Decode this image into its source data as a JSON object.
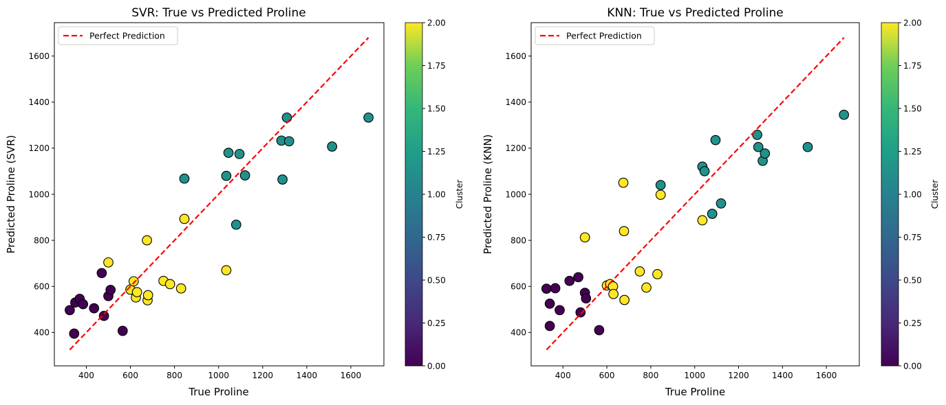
{
  "chart_data": [
    {
      "type": "scatter",
      "title": "SVR: True vs Predicted Proline",
      "xlabel": "True Proline",
      "ylabel": "Predicted Proline (SVR)",
      "xlim": [
        255,
        1750
      ],
      "ylim": [
        255,
        1745
      ],
      "xticks": [
        400,
        600,
        800,
        1000,
        1200,
        1400,
        1600
      ],
      "yticks": [
        400,
        600,
        800,
        1000,
        1200,
        1400,
        1600
      ],
      "grid": false,
      "legend": {
        "position": "upper left",
        "entries": [
          "Perfect Prediction"
        ]
      },
      "reference_line": {
        "name": "Perfect Prediction",
        "style": "dashed",
        "color": "#ff0000",
        "from": [
          325,
          325
        ],
        "to": [
          1680,
          1680
        ]
      },
      "colorbar": {
        "label": "Cluster",
        "range": [
          0.0,
          2.0
        ],
        "ticks": [
          "0.00",
          "0.25",
          "0.50",
          "0.75",
          "1.00",
          "1.25",
          "1.50",
          "1.75",
          "2.00"
        ]
      },
      "points": [
        {
          "x": 325,
          "y": 497,
          "cluster": 0
        },
        {
          "x": 345,
          "y": 395,
          "cluster": 0
        },
        {
          "x": 350,
          "y": 530,
          "cluster": 0
        },
        {
          "x": 370,
          "y": 546,
          "cluster": 0
        },
        {
          "x": 385,
          "y": 523,
          "cluster": 0
        },
        {
          "x": 435,
          "y": 505,
          "cluster": 0
        },
        {
          "x": 470,
          "y": 658,
          "cluster": 0
        },
        {
          "x": 480,
          "y": 472,
          "cluster": 0
        },
        {
          "x": 500,
          "y": 558,
          "cluster": 0
        },
        {
          "x": 510,
          "y": 585,
          "cluster": 0
        },
        {
          "x": 565,
          "y": 407,
          "cluster": 0
        },
        {
          "x": 500,
          "y": 704,
          "cluster": 2
        },
        {
          "x": 600,
          "y": 586,
          "cluster": 2
        },
        {
          "x": 615,
          "y": 622,
          "cluster": 2
        },
        {
          "x": 625,
          "y": 552,
          "cluster": 2
        },
        {
          "x": 630,
          "y": 575,
          "cluster": 2
        },
        {
          "x": 675,
          "y": 800,
          "cluster": 2
        },
        {
          "x": 678,
          "y": 540,
          "cluster": 2
        },
        {
          "x": 680,
          "y": 562,
          "cluster": 2
        },
        {
          "x": 750,
          "y": 624,
          "cluster": 2
        },
        {
          "x": 780,
          "y": 610,
          "cluster": 2
        },
        {
          "x": 830,
          "y": 591,
          "cluster": 2
        },
        {
          "x": 845,
          "y": 893,
          "cluster": 2
        },
        {
          "x": 1035,
          "y": 670,
          "cluster": 2
        },
        {
          "x": 845,
          "y": 1068,
          "cluster": 1
        },
        {
          "x": 1035,
          "y": 1080,
          "cluster": 1
        },
        {
          "x": 1045,
          "y": 1180,
          "cluster": 1
        },
        {
          "x": 1080,
          "y": 868,
          "cluster": 1
        },
        {
          "x": 1095,
          "y": 1175,
          "cluster": 1
        },
        {
          "x": 1120,
          "y": 1082,
          "cluster": 1
        },
        {
          "x": 1285,
          "y": 1233,
          "cluster": 1
        },
        {
          "x": 1290,
          "y": 1064,
          "cluster": 1
        },
        {
          "x": 1310,
          "y": 1333,
          "cluster": 1
        },
        {
          "x": 1320,
          "y": 1230,
          "cluster": 1
        },
        {
          "x": 1515,
          "y": 1207,
          "cluster": 1
        },
        {
          "x": 1680,
          "y": 1333,
          "cluster": 1
        }
      ]
    },
    {
      "type": "scatter",
      "title": "KNN: True vs Predicted Proline",
      "xlabel": "True Proline",
      "ylabel": "Predicted Proline (KNN)",
      "xlim": [
        255,
        1750
      ],
      "ylim": [
        255,
        1745
      ],
      "xticks": [
        400,
        600,
        800,
        1000,
        1200,
        1400,
        1600
      ],
      "yticks": [
        400,
        600,
        800,
        1000,
        1200,
        1400,
        1600
      ],
      "grid": false,
      "legend": {
        "position": "upper left",
        "entries": [
          "Perfect Prediction"
        ]
      },
      "reference_line": {
        "name": "Perfect Prediction",
        "style": "dashed",
        "color": "#ff0000",
        "from": [
          325,
          325
        ],
        "to": [
          1680,
          1680
        ]
      },
      "colorbar": {
        "label": "Cluster",
        "range": [
          0.0,
          2.0
        ],
        "ticks": [
          "0.00",
          "0.25",
          "0.50",
          "0.75",
          "1.00",
          "1.25",
          "1.50",
          "1.75",
          "2.00"
        ]
      },
      "points": [
        {
          "x": 325,
          "y": 590,
          "cluster": 0
        },
        {
          "x": 340,
          "y": 525,
          "cluster": 0
        },
        {
          "x": 340,
          "y": 428,
          "cluster": 0
        },
        {
          "x": 365,
          "y": 592,
          "cluster": 0
        },
        {
          "x": 385,
          "y": 497,
          "cluster": 0
        },
        {
          "x": 430,
          "y": 624,
          "cluster": 0
        },
        {
          "x": 470,
          "y": 640,
          "cluster": 0
        },
        {
          "x": 480,
          "y": 487,
          "cluster": 0
        },
        {
          "x": 500,
          "y": 572,
          "cluster": 0
        },
        {
          "x": 505,
          "y": 548,
          "cluster": 0
        },
        {
          "x": 565,
          "y": 410,
          "cluster": 0
        },
        {
          "x": 500,
          "y": 813,
          "cluster": 2
        },
        {
          "x": 600,
          "y": 604,
          "cluster": 2
        },
        {
          "x": 615,
          "y": 610,
          "cluster": 2
        },
        {
          "x": 628,
          "y": 600,
          "cluster": 2
        },
        {
          "x": 630,
          "y": 567,
          "cluster": 2
        },
        {
          "x": 675,
          "y": 1050,
          "cluster": 2
        },
        {
          "x": 678,
          "y": 840,
          "cluster": 2
        },
        {
          "x": 680,
          "y": 541,
          "cluster": 2
        },
        {
          "x": 750,
          "y": 665,
          "cluster": 2
        },
        {
          "x": 780,
          "y": 595,
          "cluster": 2
        },
        {
          "x": 830,
          "y": 653,
          "cluster": 2
        },
        {
          "x": 845,
          "y": 998,
          "cluster": 2
        },
        {
          "x": 1035,
          "y": 887,
          "cluster": 2
        },
        {
          "x": 845,
          "y": 1040,
          "cluster": 1
        },
        {
          "x": 1035,
          "y": 1120,
          "cluster": 1
        },
        {
          "x": 1045,
          "y": 1100,
          "cluster": 1
        },
        {
          "x": 1080,
          "y": 915,
          "cluster": 1
        },
        {
          "x": 1095,
          "y": 1235,
          "cluster": 1
        },
        {
          "x": 1120,
          "y": 960,
          "cluster": 1
        },
        {
          "x": 1285,
          "y": 1258,
          "cluster": 1
        },
        {
          "x": 1290,
          "y": 1205,
          "cluster": 1
        },
        {
          "x": 1310,
          "y": 1145,
          "cluster": 1
        },
        {
          "x": 1320,
          "y": 1177,
          "cluster": 1
        },
        {
          "x": 1515,
          "y": 1205,
          "cluster": 1
        },
        {
          "x": 1680,
          "y": 1345,
          "cluster": 1
        }
      ]
    }
  ]
}
